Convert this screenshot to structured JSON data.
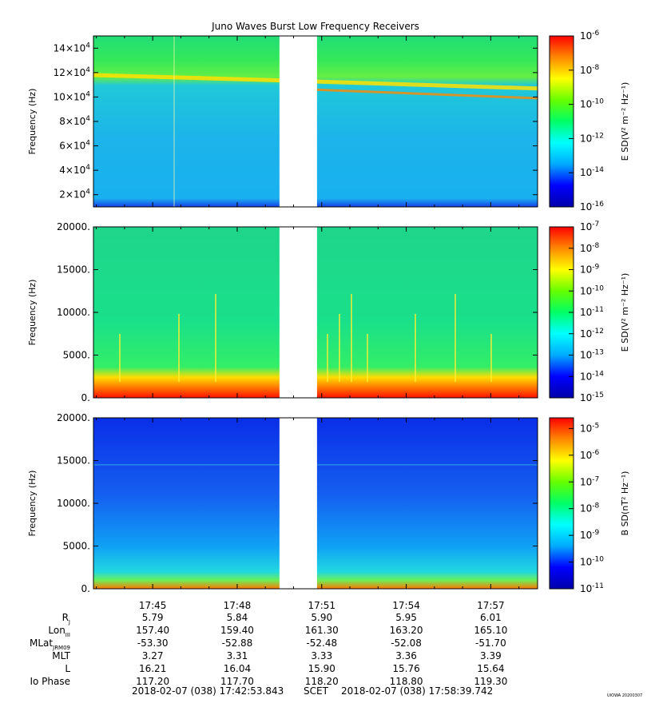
{
  "title": "Juno Waves Burst Low Frequency Receivers",
  "footer": {
    "start": "2018-02-07 (038) 17:42:53.843",
    "scet": "SCET",
    "end": "2018-02-07 (038) 17:58:39.742",
    "credit": "UIOWA 20200307"
  },
  "colors": {
    "gap_fill": "#ffffff",
    "colorbar_stops": [
      "#0000aa",
      "#0000ff",
      "#00aaff",
      "#00ffff",
      "#00ff66",
      "#66ff00",
      "#ffff00",
      "#ff8800",
      "#ff0000"
    ]
  },
  "chart_data": [
    {
      "type": "heatmap",
      "panel": "E-field high band",
      "ylabel": "Frequency (Hz)",
      "y_ticks": [
        {
          "mant": "2×10",
          "exp": "4",
          "value": 20000
        },
        {
          "mant": "4×10",
          "exp": "4",
          "value": 40000
        },
        {
          "mant": "6×10",
          "exp": "4",
          "value": 60000
        },
        {
          "mant": "8×10",
          "exp": "4",
          "value": 80000
        },
        {
          "mant": "10×10",
          "exp": "4",
          "value": 100000
        },
        {
          "mant": "12×10",
          "exp": "4",
          "value": 120000
        },
        {
          "mant": "14×10",
          "exp": "4",
          "value": 140000
        }
      ],
      "ylim": [
        10000,
        150000
      ],
      "colorbar_label": "E SD(V² m⁻² Hz⁻¹)",
      "colorbar_ticks": [
        {
          "exp": "-6",
          "value": -6
        },
        {
          "exp": "-8",
          "value": -8
        },
        {
          "exp": "-10",
          "value": -10
        },
        {
          "exp": "-12",
          "value": -12
        },
        {
          "exp": "-14",
          "value": -14
        },
        {
          "exp": "-16",
          "value": -16
        }
      ],
      "colorbar_range": [
        -16,
        -6
      ],
      "data_gap": [
        "17:49:30",
        "17:50:50"
      ]
    },
    {
      "type": "heatmap",
      "panel": "E-field low band",
      "ylabel": "Frequency (Hz)",
      "y_ticks": [
        {
          "label": "0.",
          "value": 0
        },
        {
          "label": "5000.",
          "value": 5000
        },
        {
          "label": "10000.",
          "value": 10000
        },
        {
          "label": "15000.",
          "value": 15000
        },
        {
          "label": "20000.",
          "value": 20000
        }
      ],
      "ylim": [
        0,
        20000
      ],
      "colorbar_label": "E SD(V² m⁻² Hz⁻¹)",
      "colorbar_ticks": [
        {
          "exp": "-7",
          "value": -7
        },
        {
          "exp": "-8",
          "value": -8
        },
        {
          "exp": "-9",
          "value": -9
        },
        {
          "exp": "-10",
          "value": -10
        },
        {
          "exp": "-11",
          "value": -11
        },
        {
          "exp": "-12",
          "value": -12
        },
        {
          "exp": "-13",
          "value": -13
        },
        {
          "exp": "-14",
          "value": -14
        },
        {
          "exp": "-15",
          "value": -15
        }
      ],
      "colorbar_range": [
        -15,
        -7
      ],
      "data_gap": [
        "17:49:30",
        "17:50:50"
      ]
    },
    {
      "type": "heatmap",
      "panel": "B-field",
      "ylabel": "Frequency (Hz)",
      "y_ticks": [
        {
          "label": "0.",
          "value": 0
        },
        {
          "label": "5000.",
          "value": 5000
        },
        {
          "label": "10000.",
          "value": 10000
        },
        {
          "label": "15000.",
          "value": 15000
        },
        {
          "label": "20000.",
          "value": 20000
        }
      ],
      "ylim": [
        0,
        20000
      ],
      "colorbar_label": "B SD(nT² Hz⁻¹)",
      "colorbar_ticks": [
        {
          "exp": "-5",
          "value": -5
        },
        {
          "exp": "-6",
          "value": -6
        },
        {
          "exp": "-7",
          "value": -7
        },
        {
          "exp": "-8",
          "value": -8
        },
        {
          "exp": "-9",
          "value": -9
        },
        {
          "exp": "-10",
          "value": -10
        },
        {
          "exp": "-11",
          "value": -11
        }
      ],
      "colorbar_range": [
        -11,
        -4.6
      ],
      "data_gap": [
        "17:49:30",
        "17:50:50"
      ]
    }
  ],
  "time_axis": {
    "range": [
      "17:42:53.843",
      "17:58:39.742"
    ],
    "ticks": [
      "17:45",
      "17:48",
      "17:51",
      "17:54",
      "17:57"
    ]
  },
  "ephemeris": {
    "rows": [
      {
        "key": "rj",
        "label": "R",
        "sub": "J",
        "values": [
          "5.79",
          "5.84",
          "5.90",
          "5.95",
          "6.01"
        ]
      },
      {
        "key": "lon",
        "label": "Lon",
        "sub": "III",
        "values": [
          "157.40",
          "159.40",
          "161.30",
          "163.20",
          "165.10"
        ]
      },
      {
        "key": "mlat",
        "label": "MLat",
        "sub": "JRM09",
        "values": [
          "-53.30",
          "-52.88",
          "-52.48",
          "-52.08",
          "-51.70"
        ]
      },
      {
        "key": "mlt",
        "label": "MLT",
        "sub": "",
        "values": [
          "3.27",
          "3.31",
          "3.33",
          "3.36",
          "3.39"
        ]
      },
      {
        "key": "l",
        "label": "L",
        "sub": "",
        "values": [
          "16.21",
          "16.04",
          "15.90",
          "15.76",
          "15.64"
        ]
      },
      {
        "key": "io",
        "label": "Io Phase",
        "sub": "",
        "values": [
          "117.20",
          "117.70",
          "118.20",
          "118.80",
          "119.30"
        ]
      }
    ]
  }
}
